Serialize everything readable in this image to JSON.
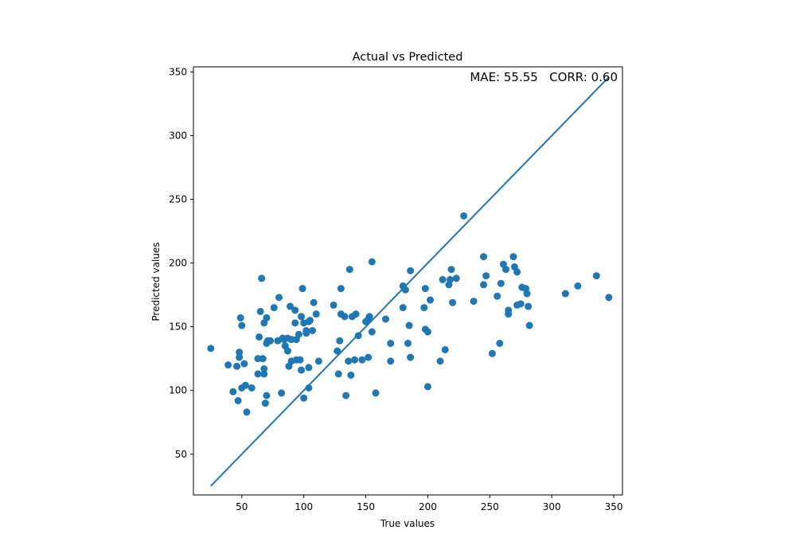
{
  "chart_data": {
    "type": "scatter",
    "title": "Actual vs Predicted",
    "xlabel": "True values",
    "ylabel": "Predicted values",
    "xlim": [
      11,
      357
    ],
    "ylim": [
      18,
      354
    ],
    "xticks": [
      50,
      100,
      150,
      200,
      250,
      300,
      350
    ],
    "yticks": [
      50,
      100,
      150,
      200,
      250,
      300,
      350
    ],
    "annotation": "MAE: 55.55   CORR: 0.60",
    "annotation_position": "top-right",
    "grid": false,
    "colors": {
      "marker": "#1f77b4",
      "line": "#1f77b4"
    },
    "reference_line": {
      "x": [
        25,
        346
      ],
      "y": [
        25,
        346
      ]
    },
    "points": [
      [
        25,
        133
      ],
      [
        39,
        120
      ],
      [
        43,
        99
      ],
      [
        46,
        119
      ],
      [
        47,
        92
      ],
      [
        48,
        126
      ],
      [
        48,
        130
      ],
      [
        49,
        157
      ],
      [
        50,
        151
      ],
      [
        50,
        102
      ],
      [
        52,
        121
      ],
      [
        53,
        104
      ],
      [
        54,
        83
      ],
      [
        58,
        102
      ],
      [
        63,
        125
      ],
      [
        63,
        113
      ],
      [
        64,
        142
      ],
      [
        65,
        162
      ],
      [
        66,
        188
      ],
      [
        67,
        125
      ],
      [
        68,
        113
      ],
      [
        68,
        117
      ],
      [
        68,
        153
      ],
      [
        69,
        90
      ],
      [
        70,
        157
      ],
      [
        70,
        96
      ],
      [
        70,
        137
      ],
      [
        71,
        139
      ],
      [
        73,
        139
      ],
      [
        76,
        165
      ],
      [
        79,
        139
      ],
      [
        80,
        173
      ],
      [
        82,
        98
      ],
      [
        83,
        141
      ],
      [
        84,
        140
      ],
      [
        85,
        135
      ],
      [
        87,
        131
      ],
      [
        87,
        141
      ],
      [
        88,
        119
      ],
      [
        89,
        166
      ],
      [
        90,
        123
      ],
      [
        90,
        140
      ],
      [
        93,
        163
      ],
      [
        93,
        153
      ],
      [
        94,
        124
      ],
      [
        94,
        140
      ],
      [
        96,
        144
      ],
      [
        97,
        124
      ],
      [
        98,
        116
      ],
      [
        98,
        158
      ],
      [
        99,
        180
      ],
      [
        100,
        153
      ],
      [
        100,
        94
      ],
      [
        102,
        147
      ],
      [
        102,
        145
      ],
      [
        104,
        154
      ],
      [
        104,
        102
      ],
      [
        104,
        118
      ],
      [
        105,
        155
      ],
      [
        107,
        147
      ],
      [
        108,
        169
      ],
      [
        110,
        160
      ],
      [
        112,
        123
      ],
      [
        124,
        167
      ],
      [
        127,
        131
      ],
      [
        128,
        113
      ],
      [
        129,
        139
      ],
      [
        130,
        180
      ],
      [
        130,
        160
      ],
      [
        133,
        158
      ],
      [
        134,
        96
      ],
      [
        136,
        123
      ],
      [
        137,
        195
      ],
      [
        138,
        112
      ],
      [
        139,
        158
      ],
      [
        141,
        124
      ],
      [
        142,
        160
      ],
      [
        144,
        143
      ],
      [
        147,
        124
      ],
      [
        150,
        154
      ],
      [
        152,
        126
      ],
      [
        152,
        156
      ],
      [
        153,
        158
      ],
      [
        155,
        201
      ],
      [
        155,
        146
      ],
      [
        158,
        98
      ],
      [
        166,
        156
      ],
      [
        170,
        137
      ],
      [
        170,
        123
      ],
      [
        180,
        165
      ],
      [
        180,
        182
      ],
      [
        182,
        179
      ],
      [
        184,
        137
      ],
      [
        185,
        151
      ],
      [
        186,
        194
      ],
      [
        186,
        126
      ],
      [
        197,
        165
      ],
      [
        198,
        180
      ],
      [
        198,
        148
      ],
      [
        200,
        146
      ],
      [
        200,
        103
      ],
      [
        202,
        171
      ],
      [
        210,
        123
      ],
      [
        212,
        187
      ],
      [
        214,
        132
      ],
      [
        217,
        183
      ],
      [
        218,
        187
      ],
      [
        219,
        195
      ],
      [
        220,
        169
      ],
      [
        223,
        188
      ],
      [
        229,
        237
      ],
      [
        237,
        170
      ],
      [
        245,
        205
      ],
      [
        245,
        183
      ],
      [
        247,
        190
      ],
      [
        252,
        129
      ],
      [
        256,
        174
      ],
      [
        258,
        137
      ],
      [
        259,
        184
      ],
      [
        261,
        199
      ],
      [
        263,
        195
      ],
      [
        265,
        160
      ],
      [
        265,
        163
      ],
      [
        269,
        205
      ],
      [
        270,
        197
      ],
      [
        272,
        167
      ],
      [
        272,
        193
      ],
      [
        275,
        168
      ],
      [
        276,
        181
      ],
      [
        279,
        180
      ],
      [
        280,
        176
      ],
      [
        281,
        166
      ],
      [
        282,
        151
      ],
      [
        311,
        176
      ],
      [
        321,
        182
      ],
      [
        336,
        190
      ],
      [
        346,
        173
      ]
    ]
  }
}
